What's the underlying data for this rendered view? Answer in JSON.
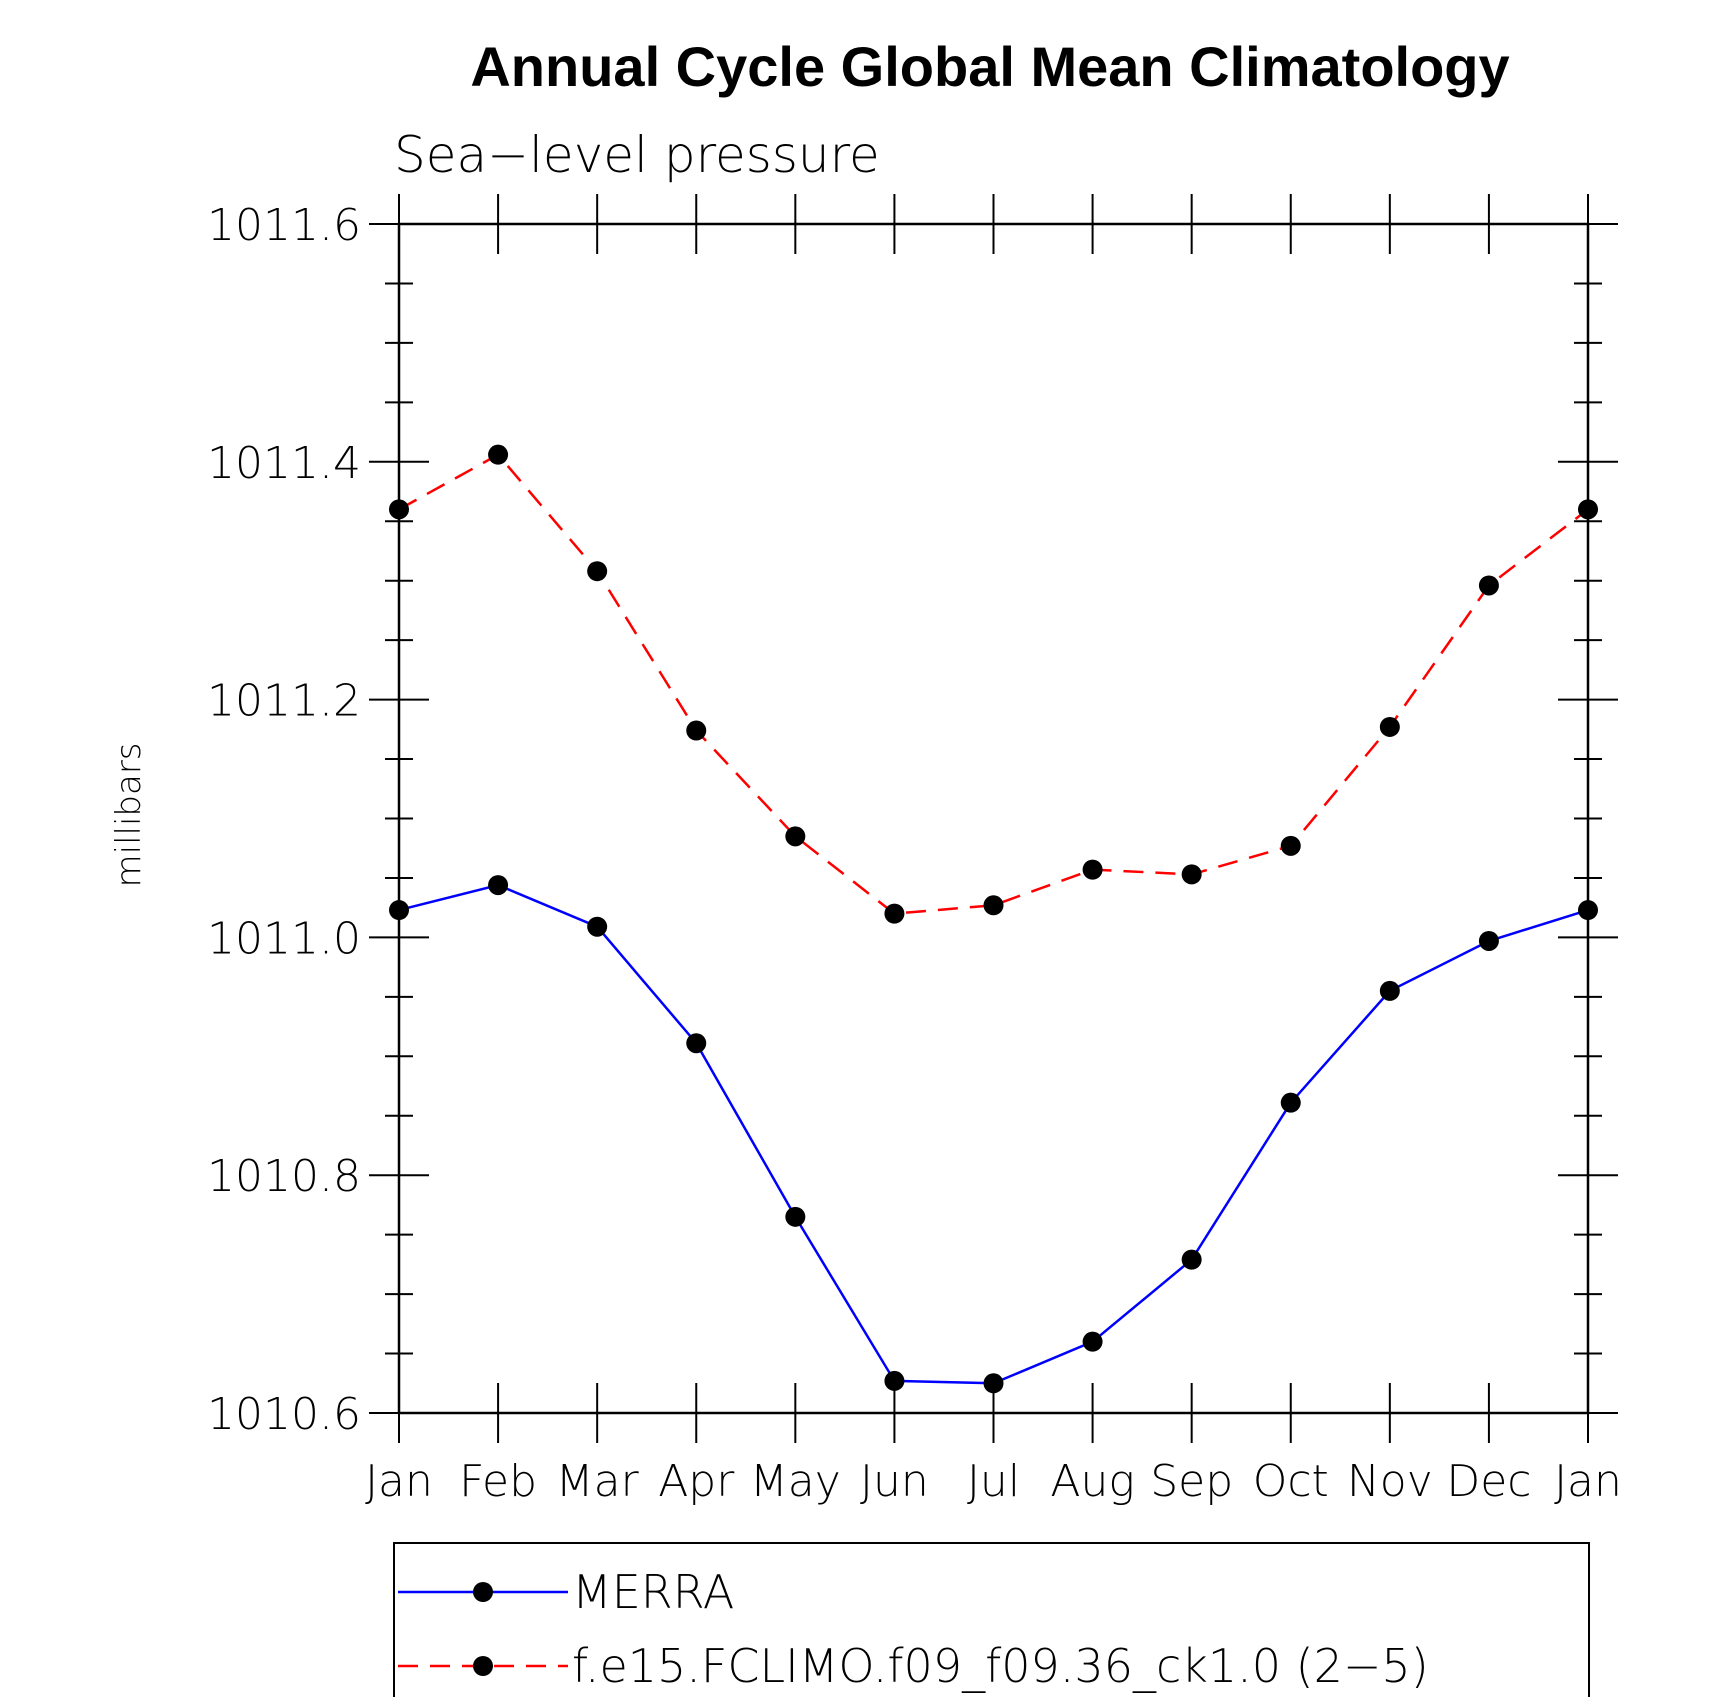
{
  "chart_data": {
    "type": "line",
    "title": "Annual Cycle Global Mean Climatology",
    "subtitle": "Sea−level pressure",
    "ylabel": "millibars",
    "xlabel": "",
    "categories": [
      "Jan",
      "Feb",
      "Mar",
      "Apr",
      "May",
      "Jun",
      "Jul",
      "Aug",
      "Sep",
      "Oct",
      "Nov",
      "Dec",
      "Jan"
    ],
    "ylim": [
      1010.6,
      1011.6
    ],
    "yticks": [
      "1010.6",
      "1010.8",
      "1011.0",
      "1011.2",
      "1011.4",
      "1011.6"
    ],
    "grid": false,
    "legend_position": "bottom",
    "series": [
      {
        "name": "MERRA",
        "color": "#0000ff",
        "dash": "solid",
        "marker": "filled-circle",
        "values": [
          1011.023,
          1011.044,
          1011.009,
          1010.911,
          1010.765,
          1010.627,
          1010.625,
          1010.66,
          1010.729,
          1010.861,
          1010.955,
          1010.997,
          1011.023
        ]
      },
      {
        "name": "f.e15.FCLIMO.f09_f09.36_ck1.0 (2−5)",
        "color": "#ff0000",
        "dash": "dashed",
        "marker": "filled-circle",
        "values": [
          1011.36,
          1011.406,
          1011.308,
          1011.174,
          1011.085,
          1011.02,
          1011.027,
          1011.057,
          1011.053,
          1011.077,
          1011.177,
          1011.296,
          1011.36
        ]
      }
    ]
  }
}
